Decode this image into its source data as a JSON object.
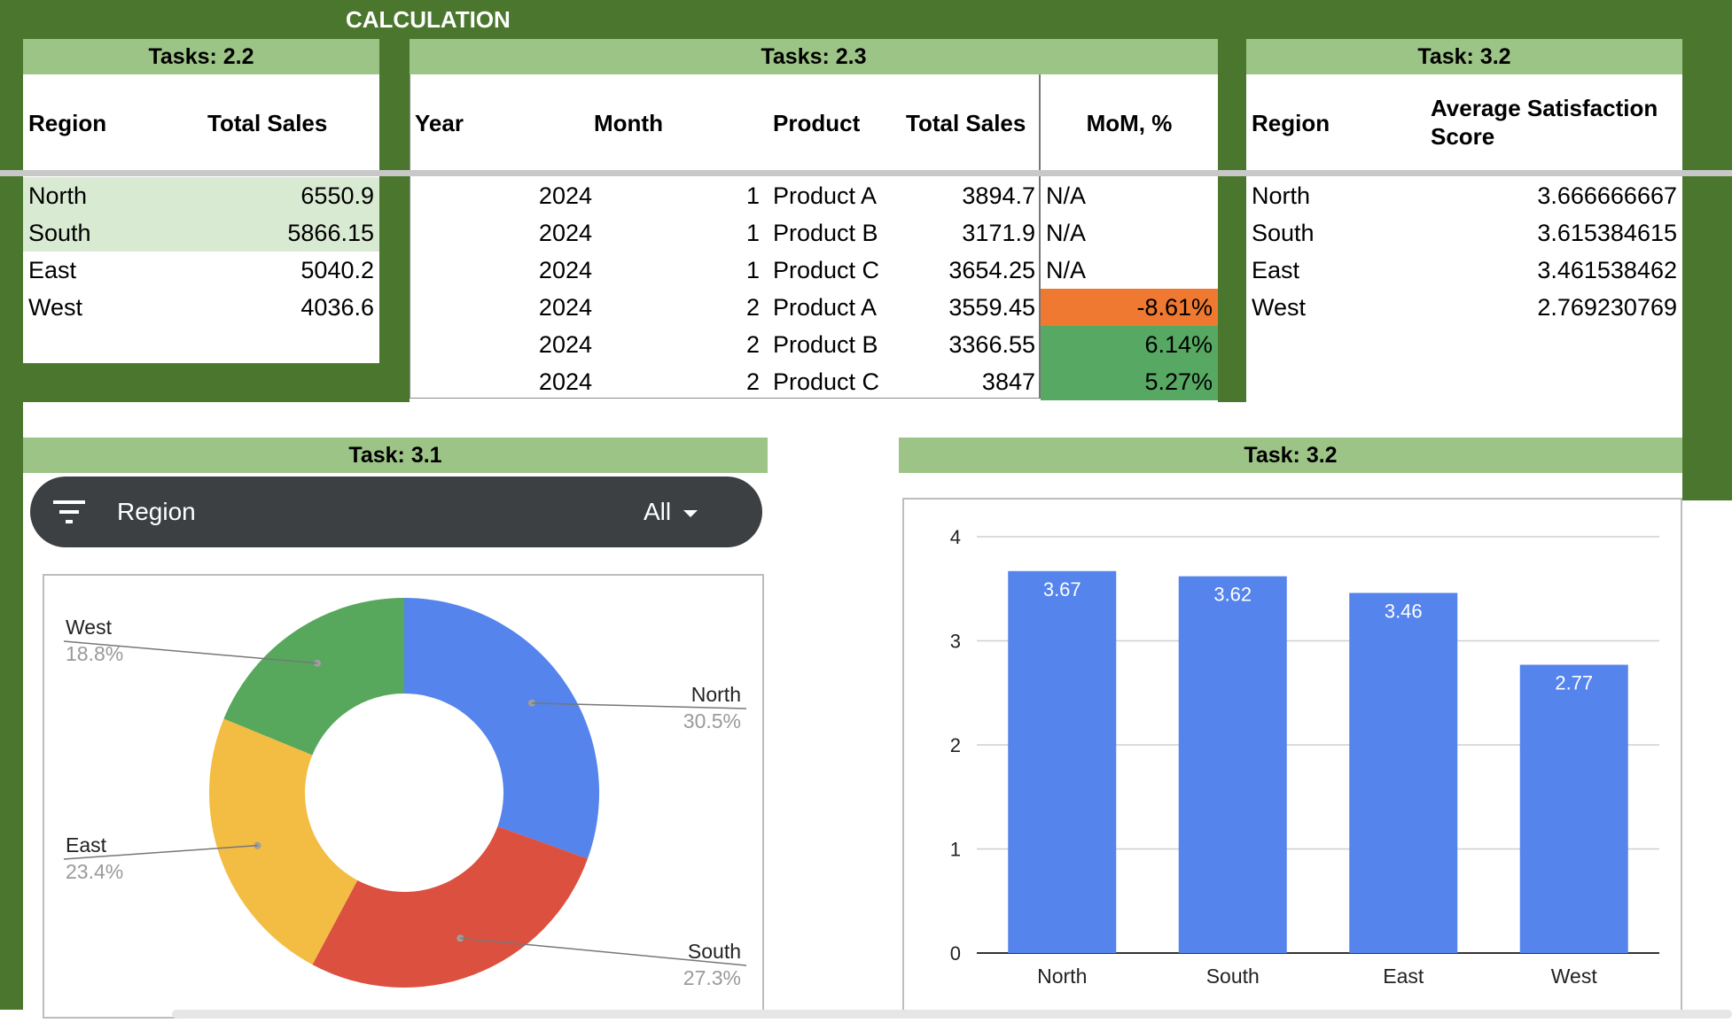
{
  "calc_title": "CALCULATION",
  "t22": {
    "title": "Tasks: 2.2",
    "headers": [
      "Region",
      "Total Sales"
    ],
    "rows": [
      {
        "region": "North",
        "sales": "6550.9"
      },
      {
        "region": "South",
        "sales": "5866.15"
      },
      {
        "region": "East",
        "sales": "5040.2"
      },
      {
        "region": "West",
        "sales": "4036.6"
      }
    ]
  },
  "t23": {
    "title": "Tasks: 2.3",
    "headers": [
      "Year",
      "Month",
      "Product",
      "Total Sales",
      "MoM, %"
    ],
    "rows": [
      {
        "year": "2024",
        "month": "1",
        "product": "Product A",
        "sales": "3894.7",
        "mom": "N/A"
      },
      {
        "year": "2024",
        "month": "1",
        "product": "Product B",
        "sales": "3171.9",
        "mom": "N/A"
      },
      {
        "year": "2024",
        "month": "1",
        "product": "Product C",
        "sales": "3654.25",
        "mom": "N/A"
      },
      {
        "year": "2024",
        "month": "2",
        "product": "Product A",
        "sales": "3559.45",
        "mom": "-8.61%"
      },
      {
        "year": "2024",
        "month": "2",
        "product": "Product B",
        "sales": "3366.55",
        "mom": "6.14%"
      },
      {
        "year": "2024",
        "month": "2",
        "product": "Product C",
        "sales": "3847",
        "mom": "5.27%"
      }
    ]
  },
  "t32": {
    "title": "Task: 3.2",
    "headers": [
      "Region",
      "Average Satisfaction Score"
    ],
    "rows": [
      {
        "region": "North",
        "score": "3.666666667"
      },
      {
        "region": "South",
        "score": "3.615384615"
      },
      {
        "region": "East",
        "score": "3.461538462"
      },
      {
        "region": "West",
        "score": "2.769230769"
      }
    ]
  },
  "panel31": {
    "title": "Task: 3.1"
  },
  "panel32": {
    "title": "Task: 3.2"
  },
  "filter": {
    "label": "Region",
    "value": "All"
  },
  "colors": {
    "dark_green": "#4a772d",
    "light_green": "#9dc487",
    "pale_green": "#d9ead3",
    "negative": "#ef7930",
    "positive": "#57a862",
    "blue": "#5484ec",
    "red": "#dc5040",
    "yellow": "#f2bd42",
    "green": "#57a85d"
  },
  "chart_data": [
    {
      "type": "pie",
      "donut": true,
      "categories": [
        "North",
        "South",
        "East",
        "West"
      ],
      "values": [
        30.5,
        27.3,
        23.4,
        18.8
      ],
      "labels": [
        "30.5%",
        "27.3%",
        "23.4%",
        "18.8%"
      ],
      "colors": [
        "#5484ec",
        "#dc5040",
        "#f2bd42",
        "#57a85d"
      ]
    },
    {
      "type": "bar",
      "categories": [
        "North",
        "South",
        "East",
        "West"
      ],
      "values": [
        3.67,
        3.62,
        3.46,
        2.77
      ],
      "data_labels": [
        "3.67",
        "3.62",
        "3.46",
        "2.77"
      ],
      "ylim": [
        0,
        4
      ],
      "yticks": [
        "0",
        "1",
        "2",
        "3",
        "4"
      ],
      "grid": true,
      "color": "#5484ec"
    }
  ]
}
